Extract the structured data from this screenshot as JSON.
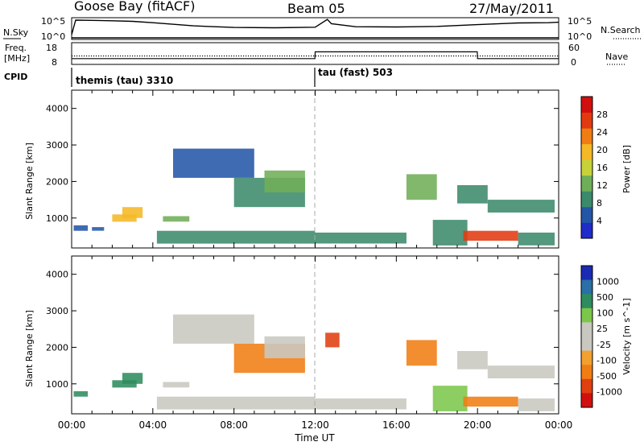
{
  "header": {
    "station": "Goose Bay (fitACF)",
    "beam": "Beam 05",
    "date": "27/May/2011"
  },
  "strip_labels": {
    "nsky": "N.Sky",
    "nsky_ticks": [
      "10^5",
      "10^0"
    ],
    "nsearch": "N.Search",
    "nsearch_ticks": [
      "10^5",
      "10^0"
    ],
    "freq_label_1": "Freq.",
    "freq_label_2": "[MHz]",
    "freq_ticks": [
      "18",
      "8"
    ],
    "nave": "Nave",
    "nave_ticks": [
      "60",
      "0"
    ],
    "cpid": "CPID"
  },
  "cpid_segments": [
    {
      "name": "themis (tau) 3310",
      "start_hour": 0
    },
    {
      "name": "tau (fast) 503",
      "start_hour": 12
    }
  ],
  "colors": {
    "power_scale": [
      "#1f2cc9",
      "#2456a8",
      "#3c8a6c",
      "#6fae58",
      "#c7d23a",
      "#f5b826",
      "#f07d13",
      "#e23a10",
      "#d20f0f"
    ],
    "velocity_scale": [
      "#1a2bb3",
      "#2a6fa5",
      "#2f8c5e",
      "#7cc74b",
      "#c8c8c0",
      "#c8c8c0",
      "#f2a030",
      "#f07d13",
      "#e04010",
      "#d20f0f"
    ]
  },
  "chart_data": [
    {
      "type": "line",
      "title": "Goose Bay (fitACF) Beam 05 27/May/2011",
      "panel": "N.Sky / N.Search",
      "x_unit": "hours UT",
      "series": [
        {
          "name": "N.Sky",
          "x": [
            0,
            0.2,
            1,
            2,
            3,
            4,
            6,
            8,
            10,
            12,
            12.6,
            12.8,
            14,
            16,
            18,
            20,
            22,
            23.5,
            24
          ],
          "values": [
            10,
            40000,
            35000,
            28000,
            20000,
            9000,
            1500,
            600,
            500,
            700,
            60000,
            5000,
            900,
            800,
            1100,
            3000,
            8000,
            9000,
            12000
          ]
        },
        {
          "name": "N.Search",
          "x": [
            0,
            6,
            12,
            18,
            24
          ],
          "values": [
            1,
            1,
            1,
            1,
            1
          ]
        }
      ],
      "ylim": [
        1,
        100000
      ],
      "log_scale": true
    },
    {
      "type": "line",
      "panel": "Freq. / Nave",
      "x_unit": "hours UT",
      "series": [
        {
          "name": "Freq.",
          "x": [
            0,
            12,
            12.01,
            20,
            20.01,
            24
          ],
          "values": [
            11.8,
            11.8,
            11.8,
            11.8,
            11.8,
            11.8
          ]
        },
        {
          "name": "Nave",
          "x": [
            0,
            11.99,
            12,
            19.99,
            20,
            24
          ],
          "values": [
            15,
            15,
            35,
            35,
            15,
            15
          ]
        }
      ],
      "freq_ylim": [
        8,
        18
      ],
      "nave_ylim": [
        0,
        60
      ]
    },
    {
      "type": "heatmap",
      "panel": "Power",
      "ylabel": "Slant Range [km]",
      "ylim": [
        180,
        4500
      ],
      "xlim": [
        0,
        24
      ],
      "colorbar_label": "Power [dB]",
      "colorbar_ticks": [
        "4",
        "8",
        "12",
        "16",
        "20",
        "24",
        "28"
      ],
      "clim": [
        0,
        32
      ],
      "regions": [
        {
          "t0": 0.1,
          "t1": 0.8,
          "r0": 650,
          "r1": 800,
          "power": 4
        },
        {
          "t0": 1.0,
          "t1": 1.6,
          "r0": 650,
          "r1": 750,
          "power": 5
        },
        {
          "t0": 2.0,
          "t1": 3.2,
          "r0": 900,
          "r1": 1100,
          "power": 18
        },
        {
          "t0": 2.5,
          "t1": 3.5,
          "r0": 1000,
          "r1": 1300,
          "power": 20
        },
        {
          "t0": 4.5,
          "t1": 5.8,
          "r0": 900,
          "r1": 1050,
          "power": 12
        },
        {
          "t0": 4.2,
          "t1": 12,
          "r0": 300,
          "r1": 650,
          "power": 8
        },
        {
          "t0": 5.0,
          "t1": 9.0,
          "r0": 2100,
          "r1": 2900,
          "power": 6
        },
        {
          "t0": 8.0,
          "t1": 11.5,
          "r0": 1300,
          "r1": 2100,
          "power": 8
        },
        {
          "t0": 9.5,
          "t1": 11.5,
          "r0": 1700,
          "r1": 2300,
          "power": 14
        },
        {
          "t0": 12,
          "t1": 16.5,
          "r0": 300,
          "r1": 600,
          "power": 8
        },
        {
          "t0": 16.5,
          "t1": 18.0,
          "r0": 1500,
          "r1": 2200,
          "power": 12
        },
        {
          "t0": 17.8,
          "t1": 19.5,
          "r0": 250,
          "r1": 950,
          "power": 10
        },
        {
          "t0": 19.0,
          "t1": 20.5,
          "r0": 1400,
          "r1": 1900,
          "power": 10
        },
        {
          "t0": 19.3,
          "t1": 22.0,
          "r0": 380,
          "r1": 650,
          "power": 27
        },
        {
          "t0": 20.5,
          "t1": 23.8,
          "r0": 1150,
          "r1": 1500,
          "power": 9
        },
        {
          "t0": 22.0,
          "t1": 23.8,
          "r0": 250,
          "r1": 600,
          "power": 9
        }
      ]
    },
    {
      "type": "heatmap",
      "panel": "Velocity",
      "xlabel": "Time UT",
      "ylabel": "Slant Range [km]",
      "ylim": [
        180,
        4500
      ],
      "xlim": [
        0,
        24
      ],
      "x_ticks": [
        "00:00",
        "04:00",
        "08:00",
        "12:00",
        "16:00",
        "20:00",
        "00:00"
      ],
      "colorbar_label": "Velocity [m s^-1]",
      "colorbar_ticks": [
        "1000",
        "500",
        "100",
        "25",
        "-25",
        "-100",
        "-500",
        "-1000"
      ],
      "regions": [
        {
          "t0": 0.1,
          "t1": 0.8,
          "r0": 650,
          "r1": 800,
          "velocity": 150
        },
        {
          "t0": 2.0,
          "t1": 3.2,
          "r0": 900,
          "r1": 1100,
          "velocity": 400
        },
        {
          "t0": 2.5,
          "t1": 3.5,
          "r0": 1000,
          "r1": 1300,
          "velocity": 200
        },
        {
          "t0": 4.5,
          "t1": 5.8,
          "r0": 900,
          "r1": 1050,
          "velocity": 0
        },
        {
          "t0": 4.2,
          "t1": 12,
          "r0": 300,
          "r1": 650,
          "velocity": 0
        },
        {
          "t0": 5.0,
          "t1": 9.0,
          "r0": 2100,
          "r1": 2900,
          "velocity": 0
        },
        {
          "t0": 8.0,
          "t1": 11.5,
          "r0": 1300,
          "r1": 2100,
          "velocity": -150
        },
        {
          "t0": 9.5,
          "t1": 11.5,
          "r0": 1700,
          "r1": 2300,
          "velocity": 0
        },
        {
          "t0": 12.5,
          "t1": 13.2,
          "r0": 2000,
          "r1": 2400,
          "velocity": -800
        },
        {
          "t0": 12,
          "t1": 16.5,
          "r0": 300,
          "r1": 600,
          "velocity": 0
        },
        {
          "t0": 16.5,
          "t1": 18.0,
          "r0": 1500,
          "r1": 2200,
          "velocity": -300
        },
        {
          "t0": 17.8,
          "t1": 19.5,
          "r0": 250,
          "r1": 950,
          "velocity": 50
        },
        {
          "t0": 19.0,
          "t1": 20.5,
          "r0": 1400,
          "r1": 1900,
          "velocity": 0
        },
        {
          "t0": 19.3,
          "t1": 22.0,
          "r0": 380,
          "r1": 650,
          "velocity": -300
        },
        {
          "t0": 20.5,
          "t1": 23.8,
          "r0": 1150,
          "r1": 1500,
          "velocity": 0
        },
        {
          "t0": 22.0,
          "t1": 23.8,
          "r0": 250,
          "r1": 600,
          "velocity": 0
        }
      ]
    }
  ]
}
